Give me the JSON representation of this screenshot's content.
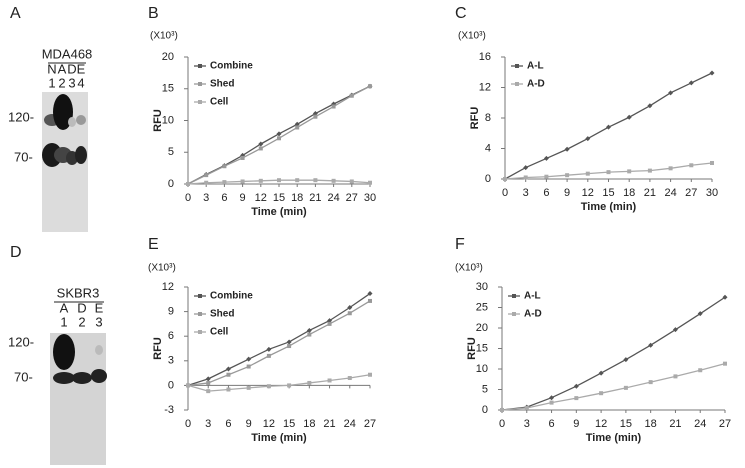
{
  "blots": [
    {
      "panel": "A",
      "cell_line": "MDA468",
      "lanes": [
        "N",
        "A",
        "D",
        "E"
      ],
      "lane_numbers": [
        "1",
        "2",
        "3",
        "4"
      ],
      "markers": [
        "120-",
        "70-"
      ]
    },
    {
      "panel": "D",
      "cell_line": "SKBR3",
      "lanes": [
        "A",
        "D",
        "E"
      ],
      "lane_numbers": [
        "1",
        "2",
        "3"
      ],
      "markers": [
        "120-",
        "70-"
      ]
    }
  ],
  "chart_data": [
    {
      "type": "line",
      "panel": "B",
      "unit": "(X10³)",
      "y_label": "RFU",
      "x_label": "Time (min)",
      "x": [
        0,
        3,
        6,
        9,
        12,
        15,
        18,
        21,
        24,
        27,
        30
      ],
      "xlim": [
        0,
        30
      ],
      "xticks": [
        0,
        3,
        6,
        9,
        12,
        15,
        18,
        21,
        24,
        27,
        30
      ],
      "ylim": [
        0,
        20
      ],
      "yticks": [
        0,
        5,
        10,
        15,
        20
      ],
      "series": [
        {
          "name": "Combine",
          "color": "#555555",
          "values": [
            0,
            1.5,
            2.9,
            4.5,
            6.3,
            7.9,
            9.4,
            11.1,
            12.6,
            14.0,
            15.4
          ]
        },
        {
          "name": "Shed",
          "color": "#999999",
          "values": [
            0,
            1.4,
            2.8,
            4.1,
            5.6,
            7.2,
            8.9,
            10.6,
            12.2,
            13.9,
            15.4
          ]
        },
        {
          "name": "Cell",
          "color": "#aaaaaa",
          "values": [
            0,
            0.2,
            0.3,
            0.4,
            0.5,
            0.6,
            0.6,
            0.6,
            0.5,
            0.4,
            0.2
          ]
        }
      ]
    },
    {
      "type": "line",
      "panel": "C",
      "unit": "(X10³)",
      "y_label": "RFU",
      "x_label": "Time (min)",
      "x": [
        0,
        3,
        6,
        9,
        12,
        15,
        18,
        21,
        24,
        27,
        30
      ],
      "xlim": [
        0,
        30
      ],
      "xticks": [
        0,
        3,
        6,
        9,
        12,
        15,
        18,
        21,
        24,
        27,
        30
      ],
      "ylim": [
        0,
        16
      ],
      "yticks": [
        0,
        4,
        8,
        12,
        16
      ],
      "series": [
        {
          "name": "A-L",
          "color": "#555555",
          "values": [
            0,
            1.5,
            2.7,
            3.9,
            5.3,
            6.8,
            8.1,
            9.6,
            11.3,
            12.6,
            13.9
          ]
        },
        {
          "name": "A-D",
          "color": "#aaaaaa",
          "values": [
            0,
            0.2,
            0.3,
            0.5,
            0.7,
            0.9,
            1.0,
            1.1,
            1.4,
            1.8,
            2.1
          ]
        }
      ]
    },
    {
      "type": "line",
      "panel": "E",
      "unit": "(X10³)",
      "y_label": "RFU",
      "x_label": "Time (min)",
      "x": [
        0,
        3,
        6,
        9,
        12,
        15,
        18,
        21,
        24,
        27
      ],
      "xlim": [
        0,
        27
      ],
      "xticks": [
        0,
        3,
        6,
        9,
        12,
        15,
        18,
        21,
        24,
        27
      ],
      "ylim": [
        -3,
        12
      ],
      "yticks": [
        -3,
        0,
        3,
        6,
        9,
        12
      ],
      "series": [
        {
          "name": "Combine",
          "color": "#555555",
          "values": [
            0,
            0.8,
            2.0,
            3.2,
            4.4,
            5.3,
            6.7,
            7.9,
            9.5,
            11.2
          ]
        },
        {
          "name": "Shed",
          "color": "#999999",
          "values": [
            0,
            0.3,
            1.3,
            2.3,
            3.6,
            4.8,
            6.2,
            7.5,
            8.8,
            10.3
          ]
        },
        {
          "name": "Cell",
          "color": "#aaaaaa",
          "values": [
            0,
            -0.7,
            -0.5,
            -0.3,
            -0.1,
            0.0,
            0.3,
            0.6,
            0.9,
            1.3
          ]
        }
      ]
    },
    {
      "type": "line",
      "panel": "F",
      "unit": "(X10³)",
      "y_label": "RFU",
      "x_label": "Time (min)",
      "x": [
        0,
        3,
        6,
        9,
        12,
        15,
        18,
        21,
        24,
        27
      ],
      "xlim": [
        0,
        27
      ],
      "xticks": [
        0,
        3,
        6,
        9,
        12,
        15,
        18,
        21,
        24,
        27
      ],
      "ylim": [
        0,
        30
      ],
      "yticks": [
        0,
        5,
        10,
        15,
        20,
        25,
        30
      ],
      "series": [
        {
          "name": "A-L",
          "color": "#555555",
          "values": [
            0,
            0.7,
            3.0,
            5.8,
            9.0,
            12.3,
            15.8,
            19.6,
            23.5,
            27.5
          ]
        },
        {
          "name": "A-D",
          "color": "#aaaaaa",
          "values": [
            0,
            0.5,
            1.8,
            2.9,
            4.1,
            5.4,
            6.8,
            8.2,
            9.7,
            11.3
          ]
        }
      ]
    }
  ]
}
